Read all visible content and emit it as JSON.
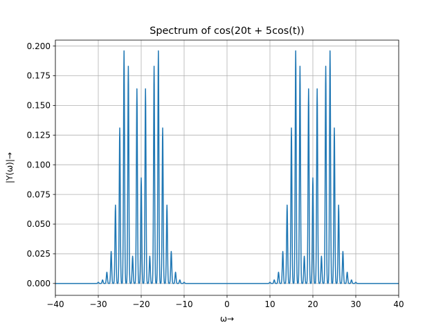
{
  "chart_data": {
    "type": "line",
    "title": "Spectrum of cos(20t + 5cos(t))",
    "xlabel": "ω→",
    "ylabel": "|Y(ω)|→",
    "xlim": [
      -40,
      40
    ],
    "ylim": [
      -0.01,
      0.205
    ],
    "xticks": [
      -40,
      -30,
      -20,
      -10,
      0,
      10,
      20,
      30,
      40
    ],
    "xtick_labels": [
      "−40",
      "−30",
      "−20",
      "−10",
      "0",
      "10",
      "20",
      "30",
      "40"
    ],
    "yticks": [
      0.0,
      0.025,
      0.05,
      0.075,
      0.1,
      0.125,
      0.15,
      0.175,
      0.2
    ],
    "ytick_labels": [
      "0.000",
      "0.025",
      "0.050",
      "0.075",
      "0.100",
      "0.125",
      "0.150",
      "0.175",
      "0.200"
    ],
    "grid": true,
    "series": [
      {
        "color": "#1f77b4",
        "peaks": [
          {
            "x": -30,
            "y": 0.001
          },
          {
            "x": -29,
            "y": 0.003
          },
          {
            "x": -28,
            "y": 0.0095
          },
          {
            "x": -27,
            "y": 0.027
          },
          {
            "x": -26,
            "y": 0.066
          },
          {
            "x": -25,
            "y": 0.131
          },
          {
            "x": -24,
            "y": 0.196
          },
          {
            "x": -23,
            "y": 0.183
          },
          {
            "x": -22,
            "y": 0.023
          },
          {
            "x": -21,
            "y": 0.164
          },
          {
            "x": -20,
            "y": 0.089
          },
          {
            "x": -19,
            "y": 0.164
          },
          {
            "x": -18,
            "y": 0.023
          },
          {
            "x": -17,
            "y": 0.183
          },
          {
            "x": -16,
            "y": 0.196
          },
          {
            "x": -15,
            "y": 0.131
          },
          {
            "x": -14,
            "y": 0.066
          },
          {
            "x": -13,
            "y": 0.027
          },
          {
            "x": -12,
            "y": 0.0095
          },
          {
            "x": -11,
            "y": 0.003
          },
          {
            "x": -10,
            "y": 0.001
          },
          {
            "x": 10,
            "y": 0.001
          },
          {
            "x": 11,
            "y": 0.003
          },
          {
            "x": 12,
            "y": 0.0095
          },
          {
            "x": 13,
            "y": 0.027
          },
          {
            "x": 14,
            "y": 0.066
          },
          {
            "x": 15,
            "y": 0.131
          },
          {
            "x": 16,
            "y": 0.196
          },
          {
            "x": 17,
            "y": 0.183
          },
          {
            "x": 18,
            "y": 0.023
          },
          {
            "x": 19,
            "y": 0.164
          },
          {
            "x": 20,
            "y": 0.089
          },
          {
            "x": 21,
            "y": 0.164
          },
          {
            "x": 22,
            "y": 0.023
          },
          {
            "x": 23,
            "y": 0.183
          },
          {
            "x": 24,
            "y": 0.196
          },
          {
            "x": 25,
            "y": 0.131
          },
          {
            "x": 26,
            "y": 0.066
          },
          {
            "x": 27,
            "y": 0.027
          },
          {
            "x": 28,
            "y": 0.0095
          },
          {
            "x": 29,
            "y": 0.003
          },
          {
            "x": 30,
            "y": 0.001
          }
        ]
      }
    ]
  }
}
